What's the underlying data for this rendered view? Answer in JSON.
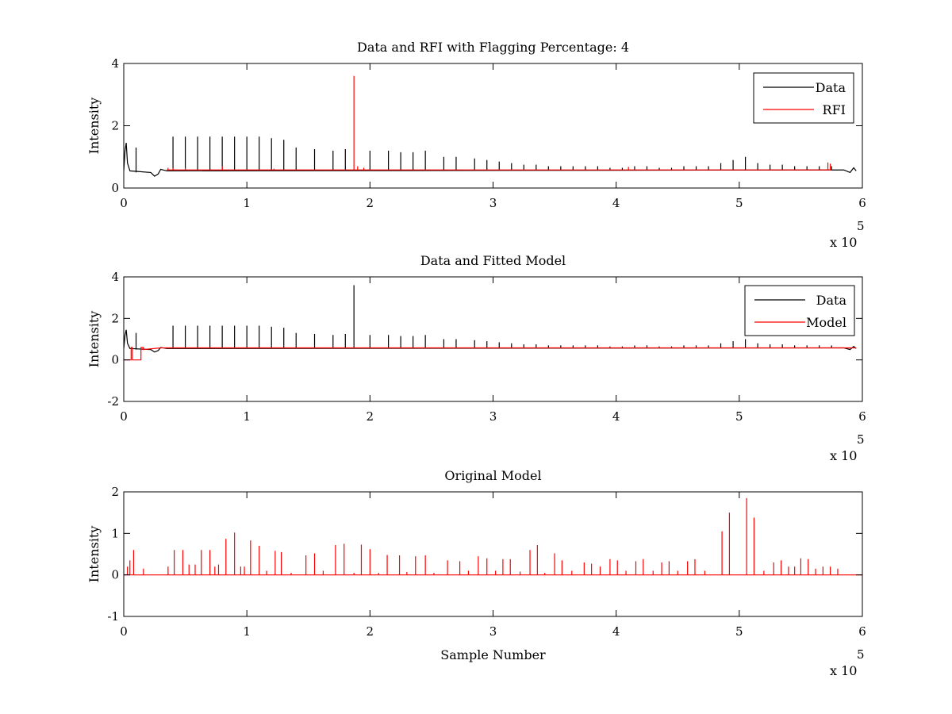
{
  "figure": {
    "background": "#ffffff",
    "colors": {
      "data": "#000000",
      "rfi": "#ff0000",
      "model": "#ff0000"
    }
  },
  "chart_data": [
    {
      "type": "line",
      "title": "Data and RFI with Flagging Percentage: 4",
      "xlabel": "",
      "ylabel": "Intensity",
      "xlim": [
        0,
        6
      ],
      "ylim": [
        0,
        4
      ],
      "xticks": [
        "0",
        "1",
        "2",
        "3",
        "4",
        "5",
        "6"
      ],
      "yticks": [
        "0",
        "2",
        "4"
      ],
      "x_multiplier": {
        "base": "x 10",
        "exponent": "5"
      },
      "legend": {
        "location": "top-right",
        "entries": [
          "Data",
          "RFI"
        ]
      },
      "series": [
        {
          "name": "Data",
          "color": "#000000",
          "baseline": [
            [
              0,
              0.55
            ],
            [
              0.01,
              1.2
            ],
            [
              0.02,
              1.45
            ],
            [
              0.03,
              0.8
            ],
            [
              0.05,
              0.55
            ],
            [
              0.22,
              0.5
            ],
            [
              0.25,
              0.38
            ],
            [
              0.28,
              0.45
            ],
            [
              0.3,
              0.6
            ],
            [
              0.35,
              0.55
            ],
            [
              5.85,
              0.58
            ],
            [
              5.9,
              0.5
            ],
            [
              5.93,
              0.65
            ],
            [
              5.95,
              0.55
            ]
          ],
          "peaks": [
            [
              0.1,
              1.3
            ],
            [
              0.4,
              1.65
            ],
            [
              0.5,
              1.65
            ],
            [
              0.6,
              1.65
            ],
            [
              0.7,
              1.65
            ],
            [
              0.8,
              1.65
            ],
            [
              0.9,
              1.65
            ],
            [
              1.0,
              1.65
            ],
            [
              1.1,
              1.65
            ],
            [
              1.2,
              1.6
            ],
            [
              1.3,
              1.55
            ],
            [
              1.4,
              1.3
            ],
            [
              1.55,
              1.25
            ],
            [
              1.7,
              1.2
            ],
            [
              1.8,
              1.25
            ],
            [
              2.0,
              1.2
            ],
            [
              2.15,
              1.2
            ],
            [
              2.25,
              1.15
            ],
            [
              2.35,
              1.15
            ],
            [
              2.45,
              1.2
            ],
            [
              2.6,
              1.0
            ],
            [
              2.7,
              1.0
            ],
            [
              2.85,
              0.95
            ],
            [
              2.95,
              0.9
            ],
            [
              3.05,
              0.85
            ],
            [
              3.15,
              0.8
            ],
            [
              3.25,
              0.75
            ],
            [
              3.35,
              0.75
            ],
            [
              3.45,
              0.7
            ],
            [
              3.55,
              0.7
            ],
            [
              3.65,
              0.7
            ],
            [
              3.75,
              0.7
            ],
            [
              3.85,
              0.7
            ],
            [
              3.95,
              0.65
            ],
            [
              4.05,
              0.65
            ],
            [
              4.15,
              0.7
            ],
            [
              4.25,
              0.7
            ],
            [
              4.35,
              0.65
            ],
            [
              4.45,
              0.65
            ],
            [
              4.55,
              0.7
            ],
            [
              4.65,
              0.7
            ],
            [
              4.75,
              0.7
            ],
            [
              4.85,
              0.8
            ],
            [
              4.95,
              0.9
            ],
            [
              5.05,
              1.0
            ],
            [
              5.15,
              0.8
            ],
            [
              5.25,
              0.75
            ],
            [
              5.35,
              0.75
            ],
            [
              5.45,
              0.7
            ],
            [
              5.55,
              0.7
            ],
            [
              5.65,
              0.7
            ],
            [
              5.75,
              0.7
            ]
          ]
        },
        {
          "name": "RFI",
          "color": "#ff0000",
          "baseline_value": 0.58,
          "x_range": [
            0.35,
            5.75
          ],
          "peaks": [
            [
              0.36,
              0.65
            ],
            [
              0.4,
              0.65
            ],
            [
              0.5,
              0.65
            ],
            [
              0.8,
              0.7
            ],
            [
              1.22,
              0.62
            ],
            [
              1.87,
              3.6
            ],
            [
              1.9,
              0.7
            ],
            [
              1.95,
              0.65
            ],
            [
              4.1,
              0.68
            ],
            [
              5.72,
              0.82
            ],
            [
              5.74,
              0.78
            ]
          ]
        }
      ]
    },
    {
      "type": "line",
      "title": "Data and Fitted Model",
      "xlabel": "",
      "ylabel": "Intensity",
      "xlim": [
        0,
        6
      ],
      "ylim": [
        -2,
        4
      ],
      "xticks": [
        "0",
        "1",
        "2",
        "3",
        "4",
        "5",
        "6"
      ],
      "yticks": [
        "-2",
        "0",
        "2",
        "4"
      ],
      "x_multiplier": {
        "base": "x 10",
        "exponent": "5"
      },
      "legend": {
        "location": "top-right",
        "entries": [
          "Data",
          "Model"
        ]
      },
      "series": [
        {
          "name": "Data",
          "color": "#000000",
          "baseline": [
            [
              0,
              0.55
            ],
            [
              0.01,
              1.2
            ],
            [
              0.02,
              1.45
            ],
            [
              0.03,
              0.8
            ],
            [
              0.05,
              0.55
            ],
            [
              0.22,
              0.5
            ],
            [
              0.25,
              0.38
            ],
            [
              0.28,
              0.45
            ],
            [
              0.3,
              0.6
            ],
            [
              0.35,
              0.55
            ],
            [
              5.85,
              0.58
            ],
            [
              5.9,
              0.5
            ],
            [
              5.93,
              0.65
            ],
            [
              5.95,
              0.55
            ]
          ],
          "peaks": [
            [
              0.1,
              1.3
            ],
            [
              0.4,
              1.65
            ],
            [
              0.5,
              1.65
            ],
            [
              0.6,
              1.65
            ],
            [
              0.7,
              1.65
            ],
            [
              0.8,
              1.65
            ],
            [
              0.9,
              1.65
            ],
            [
              1.0,
              1.65
            ],
            [
              1.1,
              1.65
            ],
            [
              1.2,
              1.6
            ],
            [
              1.3,
              1.55
            ],
            [
              1.4,
              1.3
            ],
            [
              1.55,
              1.25
            ],
            [
              1.7,
              1.2
            ],
            [
              1.8,
              1.25
            ],
            [
              1.87,
              3.6
            ],
            [
              2.0,
              1.2
            ],
            [
              2.15,
              1.2
            ],
            [
              2.25,
              1.15
            ],
            [
              2.35,
              1.15
            ],
            [
              2.45,
              1.2
            ],
            [
              2.6,
              1.0
            ],
            [
              2.7,
              1.0
            ],
            [
              2.85,
              0.95
            ],
            [
              2.95,
              0.9
            ],
            [
              3.05,
              0.85
            ],
            [
              3.15,
              0.8
            ],
            [
              3.25,
              0.75
            ],
            [
              3.35,
              0.75
            ],
            [
              3.45,
              0.7
            ],
            [
              3.55,
              0.7
            ],
            [
              3.65,
              0.7
            ],
            [
              3.75,
              0.7
            ],
            [
              3.85,
              0.7
            ],
            [
              3.95,
              0.65
            ],
            [
              4.05,
              0.65
            ],
            [
              4.15,
              0.7
            ],
            [
              4.25,
              0.7
            ],
            [
              4.35,
              0.65
            ],
            [
              4.45,
              0.65
            ],
            [
              4.55,
              0.7
            ],
            [
              4.65,
              0.7
            ],
            [
              4.75,
              0.7
            ],
            [
              4.85,
              0.8
            ],
            [
              4.95,
              0.9
            ],
            [
              5.05,
              1.0
            ],
            [
              5.15,
              0.8
            ],
            [
              5.25,
              0.75
            ],
            [
              5.35,
              0.75
            ],
            [
              5.45,
              0.7
            ],
            [
              5.55,
              0.7
            ],
            [
              5.65,
              0.7
            ],
            [
              5.75,
              0.7
            ]
          ]
        },
        {
          "name": "Model",
          "color": "#ff0000",
          "baseline": [
            [
              0,
              0.0
            ],
            [
              0.06,
              0.0
            ],
            [
              0.06,
              0.6
            ],
            [
              0.07,
              0.6
            ],
            [
              0.07,
              0.0
            ],
            [
              0.14,
              0.0
            ],
            [
              0.14,
              0.6
            ],
            [
              0.16,
              0.6
            ],
            [
              0.16,
              0.5
            ],
            [
              0.3,
              0.58
            ],
            [
              5.95,
              0.58
            ]
          ],
          "peaks": []
        }
      ]
    },
    {
      "type": "line",
      "title": "Original Model",
      "xlabel": "Sample Number",
      "ylabel": "Intensity",
      "xlim": [
        0,
        6
      ],
      "ylim": [
        -1,
        2
      ],
      "xticks": [
        "0",
        "1",
        "2",
        "3",
        "4",
        "5",
        "6"
      ],
      "yticks": [
        "-1",
        "0",
        "1",
        "2"
      ],
      "x_multiplier": {
        "base": "x 10",
        "exponent": "5"
      },
      "series": [
        {
          "color": "#ff0000",
          "baseline_value": 0.0,
          "x_range": [
            0,
            6
          ],
          "peaks": [
            [
              0.03,
              0.2
            ],
            [
              0.05,
              0.35
            ],
            [
              0.08,
              0.6
            ],
            [
              0.16,
              0.15
            ],
            [
              0.36,
              0.2
            ],
            [
              0.41,
              0.6
            ],
            [
              0.48,
              0.6
            ],
            [
              0.53,
              0.25
            ],
            [
              0.58,
              0.25
            ],
            [
              0.63,
              0.6
            ],
            [
              0.7,
              0.6
            ],
            [
              0.74,
              0.2
            ],
            [
              0.77,
              0.25
            ],
            [
              0.83,
              0.87
            ],
            [
              0.9,
              1.02
            ],
            [
              0.95,
              0.2
            ],
            [
              0.98,
              0.2
            ],
            [
              1.03,
              0.83
            ],
            [
              1.1,
              0.7
            ],
            [
              1.16,
              0.1
            ],
            [
              1.23,
              0.58
            ],
            [
              1.28,
              0.55
            ],
            [
              1.36,
              0.05
            ],
            [
              1.48,
              0.47
            ],
            [
              1.55,
              0.52
            ],
            [
              1.62,
              0.1
            ],
            [
              1.72,
              0.72
            ],
            [
              1.79,
              0.75
            ],
            [
              1.87,
              0.05
            ],
            [
              1.93,
              0.73
            ],
            [
              2.0,
              0.62
            ],
            [
              2.07,
              0.05
            ],
            [
              2.14,
              0.48
            ],
            [
              2.24,
              0.47
            ],
            [
              2.3,
              0.07
            ],
            [
              2.37,
              0.45
            ],
            [
              2.45,
              0.47
            ],
            [
              2.52,
              0.05
            ],
            [
              2.63,
              0.35
            ],
            [
              2.73,
              0.33
            ],
            [
              2.8,
              0.1
            ],
            [
              2.88,
              0.45
            ],
            [
              2.95,
              0.4
            ],
            [
              3.02,
              0.1
            ],
            [
              3.08,
              0.38
            ],
            [
              3.14,
              0.38
            ],
            [
              3.22,
              0.08
            ],
            [
              3.3,
              0.6
            ],
            [
              3.36,
              0.72
            ],
            [
              3.42,
              0.05
            ],
            [
              3.5,
              0.52
            ],
            [
              3.56,
              0.35
            ],
            [
              3.64,
              0.1
            ],
            [
              3.74,
              0.3
            ],
            [
              3.8,
              0.27
            ],
            [
              3.87,
              0.2
            ],
            [
              3.95,
              0.38
            ],
            [
              4.01,
              0.35
            ],
            [
              4.08,
              0.1
            ],
            [
              4.16,
              0.33
            ],
            [
              4.22,
              0.38
            ],
            [
              4.3,
              0.1
            ],
            [
              4.37,
              0.3
            ],
            [
              4.43,
              0.33
            ],
            [
              4.5,
              0.1
            ],
            [
              4.58,
              0.33
            ],
            [
              4.64,
              0.38
            ],
            [
              4.72,
              0.1
            ],
            [
              4.86,
              1.05
            ],
            [
              4.92,
              1.5
            ],
            [
              5.06,
              1.85
            ],
            [
              5.12,
              1.38
            ],
            [
              5.2,
              0.1
            ],
            [
              5.28,
              0.3
            ],
            [
              5.34,
              0.35
            ],
            [
              5.4,
              0.2
            ],
            [
              5.45,
              0.2
            ],
            [
              5.5,
              0.4
            ],
            [
              5.56,
              0.38
            ],
            [
              5.62,
              0.15
            ],
            [
              5.68,
              0.2
            ],
            [
              5.74,
              0.2
            ],
            [
              5.8,
              0.15
            ]
          ]
        }
      ]
    }
  ]
}
